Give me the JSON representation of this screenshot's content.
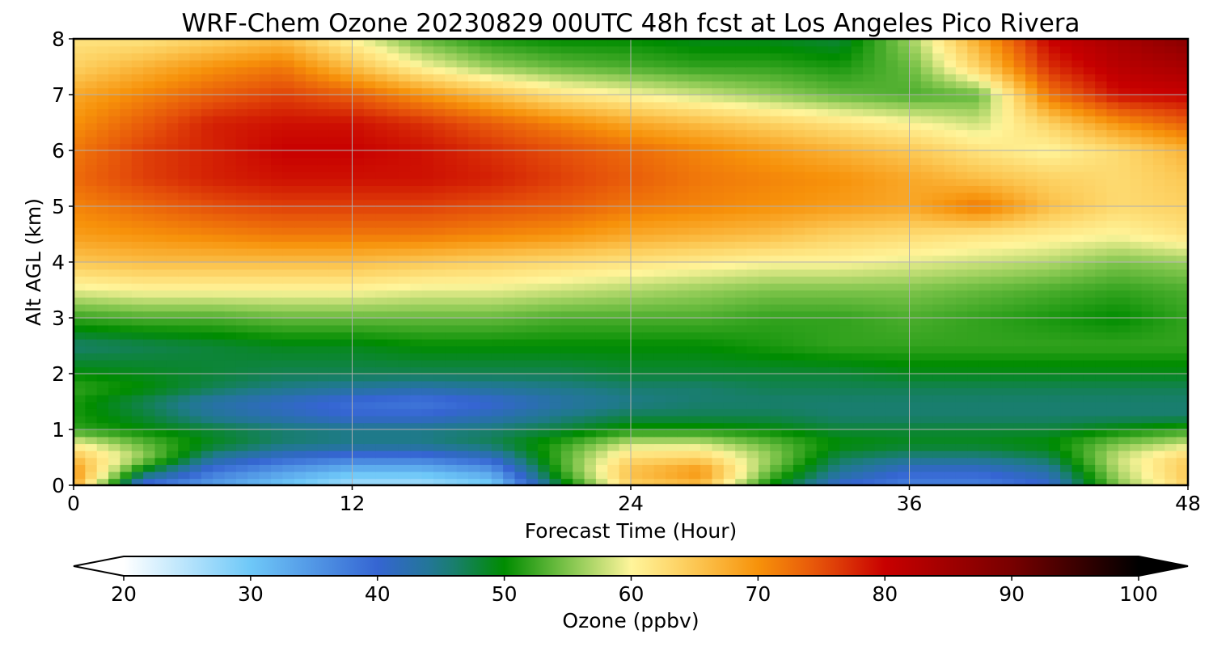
{
  "chart_data": {
    "type": "heatmap",
    "title": "WRF-Chem Ozone  20230829 00UTC 48h fcst at Los Angeles Pico Rivera",
    "xlabel": "Forecast Time (Hour)",
    "ylabel": "Alt AGL (km)",
    "xlim": [
      0,
      48
    ],
    "ylim": [
      0,
      8
    ],
    "xticks": [
      "0",
      "12",
      "24",
      "36",
      "48"
    ],
    "yticks": [
      "0",
      "1",
      "2",
      "3",
      "4",
      "5",
      "6",
      "7",
      "8"
    ],
    "grid": true,
    "x": [
      0,
      3,
      6,
      9,
      12,
      15,
      18,
      21,
      24,
      27,
      30,
      33,
      36,
      39,
      42,
      45,
      48
    ],
    "y": [
      0,
      0.25,
      0.5,
      0.75,
      1,
      1.25,
      1.5,
      1.75,
      2,
      2.5,
      3,
      3.5,
      4,
      4.5,
      5,
      5.5,
      6,
      6.5,
      7,
      7.5,
      8
    ],
    "z": [
      [
        68,
        38,
        34,
        30,
        26,
        26,
        29,
        48,
        64,
        66,
        50,
        40,
        37,
        37,
        40,
        55,
        64
      ],
      [
        70,
        48,
        38,
        34,
        31,
        31,
        34,
        52,
        66,
        70,
        54,
        44,
        40,
        40,
        43,
        57,
        65
      ],
      [
        66,
        56,
        44,
        40,
        38,
        38,
        41,
        53,
        63,
        64,
        56,
        47,
        45,
        45,
        47,
        58,
        64
      ],
      [
        60,
        54,
        49,
        46,
        45,
        45,
        47,
        52,
        58,
        58,
        54,
        50,
        49,
        49,
        50,
        55,
        58
      ],
      [
        52,
        50,
        48,
        46,
        45,
        45,
        46,
        48,
        51,
        51,
        50,
        48,
        48,
        48,
        48,
        50,
        52
      ],
      [
        51,
        48,
        44,
        42,
        40,
        40,
        42,
        45,
        47,
        47,
        47,
        46,
        46,
        46,
        46,
        46,
        46
      ],
      [
        51,
        47,
        43,
        41,
        39,
        38,
        40,
        43,
        45,
        46,
        46,
        46,
        46,
        46,
        46,
        46,
        46
      ],
      [
        52,
        50,
        47,
        45,
        44,
        43,
        44,
        45,
        46,
        46,
        47,
        47,
        47,
        47,
        47,
        47,
        47
      ],
      [
        50,
        49,
        48,
        47,
        47,
        47,
        47,
        47,
        48,
        48,
        48,
        48,
        49,
        49,
        49,
        49,
        49
      ],
      [
        46,
        47,
        48,
        49,
        49,
        50,
        50,
        50,
        50,
        50,
        51,
        52,
        52,
        52,
        52,
        52,
        52
      ],
      [
        52,
        53,
        53,
        54,
        54,
        54,
        54,
        53,
        53,
        53,
        52,
        52,
        53,
        52,
        51,
        50,
        52
      ],
      [
        59,
        60,
        60,
        60,
        60,
        59,
        59,
        58,
        57,
        56,
        55,
        55,
        55,
        54,
        53,
        52,
        53
      ],
      [
        65,
        66,
        66,
        66,
        66,
        65,
        64,
        63,
        62,
        61,
        60,
        60,
        59,
        58,
        57,
        55,
        56
      ],
      [
        69,
        70,
        71,
        72,
        72,
        72,
        71,
        70,
        68,
        67,
        66,
        64,
        63,
        62,
        61,
        60,
        62
      ],
      [
        71,
        73,
        75,
        76,
        76,
        76,
        75,
        74,
        72,
        71,
        70,
        69,
        68,
        72,
        66,
        63,
        64
      ],
      [
        73,
        76,
        78,
        79,
        79,
        79,
        78,
        76,
        74,
        72,
        71,
        70,
        68,
        66,
        64,
        63,
        65
      ],
      [
        72,
        76,
        78,
        80,
        80,
        79,
        77,
        75,
        73,
        71,
        69,
        67,
        65,
        62,
        60,
        63,
        67
      ],
      [
        70,
        74,
        78,
        79,
        79,
        77,
        74,
        71,
        68,
        66,
        64,
        62,
        60,
        58,
        64,
        70,
        74
      ],
      [
        68,
        71,
        74,
        76,
        74,
        70,
        66,
        62,
        60,
        58,
        56,
        54,
        53,
        54,
        72,
        79,
        80
      ],
      [
        64,
        67,
        70,
        72,
        66,
        60,
        56,
        54,
        53,
        52,
        52,
        51,
        54,
        64,
        77,
        82,
        84
      ],
      [
        62,
        62,
        64,
        66,
        60,
        54,
        51,
        50,
        50,
        49,
        49,
        48,
        56,
        68,
        80,
        84,
        88
      ]
    ],
    "colorbar": {
      "label": "Ozone  (ppbv)",
      "min": 20,
      "max": 100,
      "ticks": [
        "20",
        "30",
        "40",
        "50",
        "60",
        "70",
        "80",
        "90",
        "100"
      ],
      "extend": "both"
    },
    "colors": {
      "stops": [
        [
          20,
          "#ffffff"
        ],
        [
          30,
          "#6ec8f8"
        ],
        [
          40,
          "#3565d2"
        ],
        [
          45,
          "#1f7a8a"
        ],
        [
          50,
          "#008c00"
        ],
        [
          55,
          "#7ec44b"
        ],
        [
          60,
          "#fff59b"
        ],
        [
          65,
          "#fcc854"
        ],
        [
          70,
          "#f7920a"
        ],
        [
          75,
          "#e5500a"
        ],
        [
          80,
          "#c80000"
        ],
        [
          90,
          "#780000"
        ],
        [
          100,
          "#000000"
        ]
      ],
      "grid": "#b0b0b0"
    }
  }
}
